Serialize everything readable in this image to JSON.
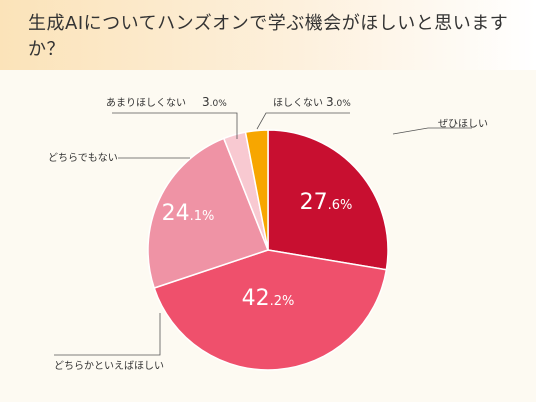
{
  "title": "生成AIについてハンズオンで学ぶ機会がほしいと思いますか？",
  "chart_data": {
    "type": "pie",
    "start_angle_deg": 0,
    "direction": "clockwise",
    "slices": [
      {
        "label": "ぜひほしい",
        "value": 27.6,
        "value_text": "27.6%",
        "color": "#c80f30"
      },
      {
        "label": "どちらかといえばほしい",
        "value": 42.2,
        "value_text": "42.2%",
        "color": "#ef506c"
      },
      {
        "label": "どちらでもない",
        "value": 24.1,
        "value_text": "24.1%",
        "color": "#ef93a5"
      },
      {
        "label": "あまりほしくない",
        "value": 3.0,
        "value_text": "3.0%",
        "color": "#f8c9d1"
      },
      {
        "label": "ほしくない",
        "value": 3.0,
        "value_text": "3.0%",
        "color": "#f7a600"
      }
    ]
  }
}
